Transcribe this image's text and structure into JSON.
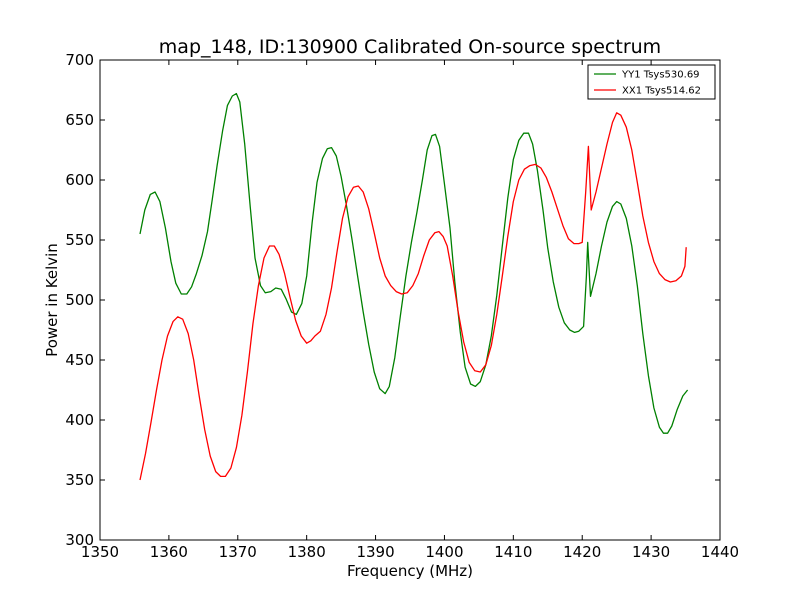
{
  "chart_data": {
    "type": "line",
    "title": "map_148, ID:130900 Calibrated On-source spectrum",
    "xlabel": "Frequency (MHz)",
    "ylabel": "Power in Kelvin",
    "xlim": [
      1350,
      1440
    ],
    "ylim": [
      300,
      700
    ],
    "x_ticks": [
      "1350",
      "1360",
      "1370",
      "1380",
      "1390",
      "1400",
      "1410",
      "1420",
      "1430",
      "1440"
    ],
    "y_ticks": [
      "300",
      "350",
      "400",
      "450",
      "500",
      "550",
      "600",
      "650",
      "700"
    ],
    "grid": false,
    "legend_position": "top-right",
    "series": [
      {
        "name": "YY1 Tsys530.69",
        "color": "#008000",
        "points": [
          [
            1355.8,
            555
          ],
          [
            1356.5,
            575
          ],
          [
            1357.3,
            588
          ],
          [
            1358.0,
            590
          ],
          [
            1358.7,
            582
          ],
          [
            1359.5,
            560
          ],
          [
            1360.3,
            532
          ],
          [
            1361.0,
            514
          ],
          [
            1361.8,
            505
          ],
          [
            1362.6,
            505
          ],
          [
            1363.3,
            511
          ],
          [
            1364.0,
            522
          ],
          [
            1364.8,
            537
          ],
          [
            1365.6,
            557
          ],
          [
            1366.3,
            584
          ],
          [
            1367.0,
            612
          ],
          [
            1367.8,
            641
          ],
          [
            1368.5,
            662
          ],
          [
            1369.2,
            670
          ],
          [
            1369.8,
            672
          ],
          [
            1370.3,
            665
          ],
          [
            1371.0,
            630
          ],
          [
            1371.8,
            578
          ],
          [
            1372.5,
            535
          ],
          [
            1373.3,
            512
          ],
          [
            1374.0,
            506
          ],
          [
            1374.8,
            507
          ],
          [
            1375.5,
            510
          ],
          [
            1376.3,
            509
          ],
          [
            1377.0,
            501
          ],
          [
            1377.8,
            490
          ],
          [
            1378.5,
            488
          ],
          [
            1379.3,
            497
          ],
          [
            1380.0,
            520
          ],
          [
            1380.8,
            565
          ],
          [
            1381.5,
            598
          ],
          [
            1382.3,
            618
          ],
          [
            1383.0,
            626
          ],
          [
            1383.6,
            627
          ],
          [
            1384.3,
            620
          ],
          [
            1385.0,
            603
          ],
          [
            1385.8,
            578
          ],
          [
            1386.6,
            550
          ],
          [
            1387.4,
            520
          ],
          [
            1388.2,
            490
          ],
          [
            1389.0,
            463
          ],
          [
            1389.8,
            440
          ],
          [
            1390.6,
            426
          ],
          [
            1391.4,
            422
          ],
          [
            1392.0,
            428
          ],
          [
            1392.8,
            452
          ],
          [
            1393.6,
            487
          ],
          [
            1394.4,
            520
          ],
          [
            1395.2,
            548
          ],
          [
            1396.0,
            573
          ],
          [
            1396.8,
            600
          ],
          [
            1397.5,
            625
          ],
          [
            1398.2,
            637
          ],
          [
            1398.7,
            638
          ],
          [
            1399.3,
            628
          ],
          [
            1400.0,
            597
          ],
          [
            1400.8,
            560
          ],
          [
            1401.5,
            515
          ],
          [
            1402.3,
            473
          ],
          [
            1403.0,
            444
          ],
          [
            1403.8,
            430
          ],
          [
            1404.5,
            428
          ],
          [
            1405.2,
            432
          ],
          [
            1406.0,
            446
          ],
          [
            1406.8,
            470
          ],
          [
            1407.6,
            504
          ],
          [
            1408.4,
            545
          ],
          [
            1409.2,
            585
          ],
          [
            1410.0,
            617
          ],
          [
            1410.8,
            633
          ],
          [
            1411.5,
            639
          ],
          [
            1412.2,
            639
          ],
          [
            1412.8,
            630
          ],
          [
            1413.5,
            608
          ],
          [
            1414.3,
            575
          ],
          [
            1415.0,
            543
          ],
          [
            1415.8,
            515
          ],
          [
            1416.6,
            494
          ],
          [
            1417.4,
            481
          ],
          [
            1418.2,
            475
          ],
          [
            1418.9,
            473
          ],
          [
            1419.5,
            474
          ],
          [
            1420.2,
            478
          ],
          [
            1420.6,
            520
          ],
          [
            1420.8,
            548
          ],
          [
            1421.2,
            503
          ],
          [
            1422.0,
            522
          ],
          [
            1422.8,
            545
          ],
          [
            1423.6,
            565
          ],
          [
            1424.4,
            578
          ],
          [
            1425.0,
            582
          ],
          [
            1425.6,
            580
          ],
          [
            1426.4,
            568
          ],
          [
            1427.2,
            545
          ],
          [
            1428.0,
            512
          ],
          [
            1428.8,
            472
          ],
          [
            1429.6,
            437
          ],
          [
            1430.4,
            410
          ],
          [
            1431.2,
            394
          ],
          [
            1431.8,
            389
          ],
          [
            1432.4,
            389
          ],
          [
            1433.0,
            395
          ],
          [
            1433.8,
            409
          ],
          [
            1434.6,
            420
          ],
          [
            1435.3,
            425
          ]
        ]
      },
      {
        "name": "XX1 Tsys514.62",
        "color": "#ff0000",
        "points": [
          [
            1355.8,
            350
          ],
          [
            1356.6,
            372
          ],
          [
            1357.4,
            398
          ],
          [
            1358.2,
            425
          ],
          [
            1359.0,
            450
          ],
          [
            1359.8,
            470
          ],
          [
            1360.6,
            482
          ],
          [
            1361.3,
            486
          ],
          [
            1362.0,
            484
          ],
          [
            1362.8,
            472
          ],
          [
            1363.6,
            450
          ],
          [
            1364.4,
            420
          ],
          [
            1365.2,
            392
          ],
          [
            1366.0,
            370
          ],
          [
            1366.8,
            357
          ],
          [
            1367.5,
            353
          ],
          [
            1368.2,
            353
          ],
          [
            1369.0,
            360
          ],
          [
            1369.8,
            377
          ],
          [
            1370.6,
            404
          ],
          [
            1371.4,
            440
          ],
          [
            1372.2,
            480
          ],
          [
            1373.0,
            512
          ],
          [
            1373.8,
            535
          ],
          [
            1374.6,
            545
          ],
          [
            1375.3,
            545
          ],
          [
            1376.0,
            538
          ],
          [
            1376.8,
            522
          ],
          [
            1377.6,
            502
          ],
          [
            1378.4,
            483
          ],
          [
            1379.2,
            470
          ],
          [
            1380.0,
            464
          ],
          [
            1380.6,
            466
          ],
          [
            1381.2,
            470
          ],
          [
            1382.0,
            474
          ],
          [
            1382.8,
            488
          ],
          [
            1383.6,
            510
          ],
          [
            1384.4,
            540
          ],
          [
            1385.2,
            568
          ],
          [
            1386.0,
            586
          ],
          [
            1386.8,
            594
          ],
          [
            1387.5,
            595
          ],
          [
            1388.2,
            590
          ],
          [
            1389.0,
            576
          ],
          [
            1389.8,
            556
          ],
          [
            1390.6,
            535
          ],
          [
            1391.4,
            520
          ],
          [
            1392.2,
            512
          ],
          [
            1393.0,
            507
          ],
          [
            1393.8,
            505
          ],
          [
            1394.6,
            506
          ],
          [
            1395.4,
            512
          ],
          [
            1396.2,
            522
          ],
          [
            1397.0,
            537
          ],
          [
            1397.8,
            550
          ],
          [
            1398.6,
            556
          ],
          [
            1399.2,
            557
          ],
          [
            1399.8,
            553
          ],
          [
            1400.4,
            545
          ],
          [
            1401.2,
            520
          ],
          [
            1402.0,
            490
          ],
          [
            1402.8,
            465
          ],
          [
            1403.6,
            448
          ],
          [
            1404.4,
            441
          ],
          [
            1405.2,
            440
          ],
          [
            1406.0,
            446
          ],
          [
            1406.8,
            462
          ],
          [
            1407.6,
            488
          ],
          [
            1408.4,
            520
          ],
          [
            1409.2,
            553
          ],
          [
            1410.0,
            582
          ],
          [
            1410.8,
            600
          ],
          [
            1411.6,
            609
          ],
          [
            1412.4,
            612
          ],
          [
            1413.2,
            613
          ],
          [
            1414.0,
            610
          ],
          [
            1414.8,
            602
          ],
          [
            1415.6,
            590
          ],
          [
            1416.4,
            576
          ],
          [
            1417.2,
            562
          ],
          [
            1418.0,
            551
          ],
          [
            1418.8,
            547
          ],
          [
            1419.5,
            547
          ],
          [
            1420.0,
            548
          ],
          [
            1420.5,
            590
          ],
          [
            1420.9,
            628
          ],
          [
            1421.3,
            575
          ],
          [
            1422.0,
            590
          ],
          [
            1422.8,
            610
          ],
          [
            1423.6,
            630
          ],
          [
            1424.4,
            648
          ],
          [
            1425.0,
            656
          ],
          [
            1425.6,
            654
          ],
          [
            1426.4,
            644
          ],
          [
            1427.2,
            625
          ],
          [
            1428.0,
            598
          ],
          [
            1428.8,
            570
          ],
          [
            1429.6,
            548
          ],
          [
            1430.4,
            532
          ],
          [
            1431.2,
            522
          ],
          [
            1432.0,
            517
          ],
          [
            1432.8,
            515
          ],
          [
            1433.6,
            516
          ],
          [
            1434.4,
            520
          ],
          [
            1434.9,
            528
          ],
          [
            1435.1,
            544
          ]
        ]
      }
    ]
  }
}
